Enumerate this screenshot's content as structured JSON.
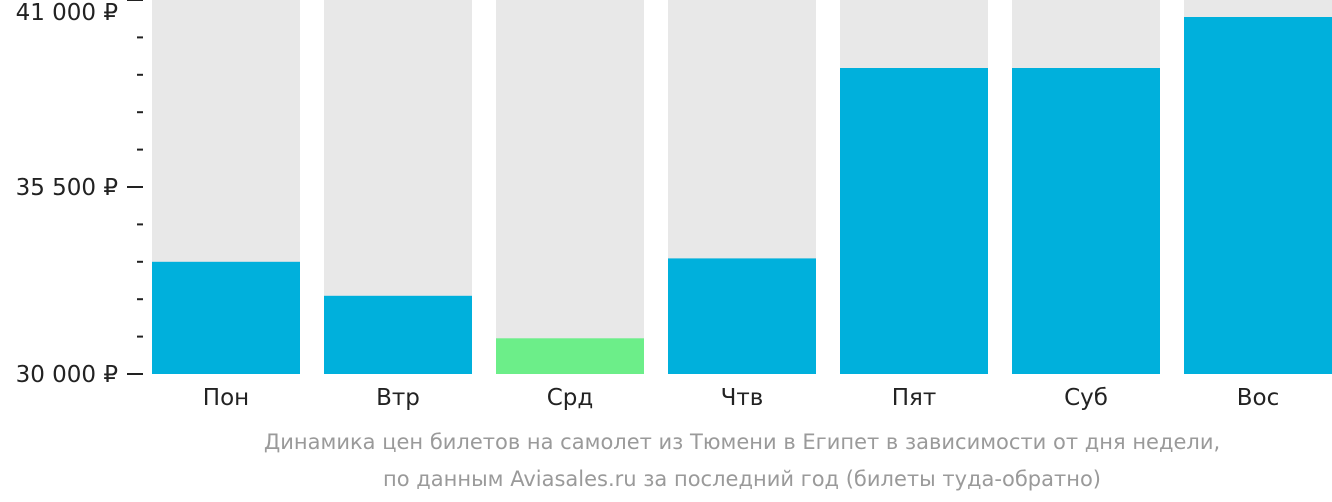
{
  "chart_data": {
    "type": "bar",
    "categories": [
      "Пон",
      "Втр",
      "Срд",
      "Чтв",
      "Пят",
      "Суб",
      "Вос"
    ],
    "values": [
      33300,
      32300,
      31050,
      33400,
      39000,
      39000,
      40500
    ],
    "highlight_index": 2,
    "colors": {
      "bar": "#00b0dc",
      "highlight": "#6cee89",
      "background": "#e8e8e8",
      "text": "#222222",
      "tick": "#222222"
    },
    "ylim": [
      30000,
      41000
    ],
    "y_ticks_labeled": [
      {
        "value": 30000,
        "label": "30 000 ₽"
      },
      {
        "value": 35500,
        "label": "35 500 ₽"
      },
      {
        "value": 41000,
        "label": "41 000 ₽"
      }
    ],
    "y_ticks_minor": [
      31100,
      32200,
      33300,
      34400,
      36600,
      37700,
      38800,
      39900
    ]
  },
  "caption": {
    "line1": "Динамика цен билетов на самолет из Тюмени в Египет в зависимости от дня недели,",
    "line2": "по данным Aviasales.ru за последний год (билеты туда-обратно)"
  }
}
